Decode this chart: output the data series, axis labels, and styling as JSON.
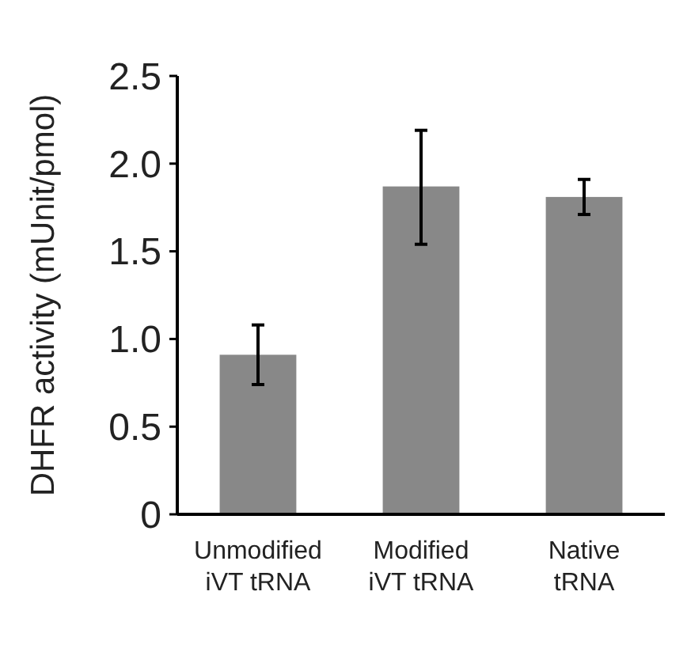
{
  "chart_data": {
    "type": "bar",
    "ylabel": "DHFR activity (mUnit/pmol)",
    "categories": [
      "Unmodified iVT tRNA",
      "Modified iVT tRNA",
      "Native tRNA"
    ],
    "values": [
      0.91,
      1.87,
      1.81
    ],
    "color": "#888888",
    "errors": [
      [
        0.74,
        1.08
      ],
      [
        1.54,
        2.19
      ],
      [
        1.71,
        1.91
      ]
    ],
    "ylim": [
      0,
      2.5
    ],
    "yticks": [
      {
        "value": 0,
        "label": "0"
      },
      {
        "value": 0.5,
        "label": "0.5"
      },
      {
        "value": 1,
        "label": "1.0"
      },
      {
        "value": 1.5,
        "label": "1.5"
      },
      {
        "value": 2,
        "label": "2.0"
      },
      {
        "value": 2.5,
        "label": "2.5"
      }
    ],
    "grid": false
  }
}
